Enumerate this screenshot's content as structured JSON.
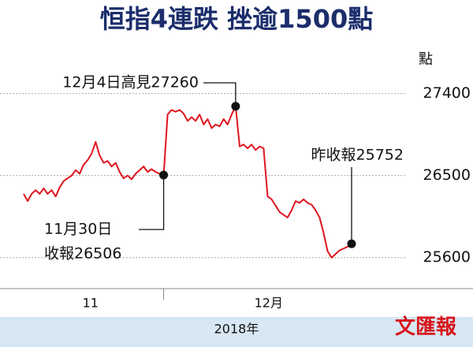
{
  "chart_data": {
    "type": "line",
    "title": "恒指4連跌 挫逾1500點",
    "y_unit": "點",
    "color": "#e0141e",
    "values": [
      26300,
      26220,
      26300,
      26340,
      26300,
      26360,
      26300,
      26340,
      26270,
      26370,
      26440,
      26470,
      26500,
      26560,
      26520,
      26620,
      26670,
      26740,
      26870,
      26720,
      26640,
      26660,
      26600,
      26640,
      26540,
      26470,
      26500,
      26460,
      26520,
      26560,
      26600,
      26540,
      26570,
      26540,
      26520,
      26506,
      27170,
      27220,
      27200,
      27220,
      27180,
      27100,
      27140,
      27100,
      27170,
      27060,
      27120,
      27020,
      27060,
      27040,
      27120,
      27060,
      27170,
      27260,
      26820,
      26840,
      26800,
      26840,
      26780,
      26820,
      26800,
      26270,
      26240,
      26170,
      26100,
      26070,
      26040,
      26120,
      26220,
      26200,
      26240,
      26200,
      26180,
      26120,
      26040,
      25870,
      25670,
      25600,
      25640,
      25680,
      25700,
      25720,
      25752
    ],
    "ylim": [
      25260,
      27950
    ],
    "yticks": [
      25600,
      26500,
      27400
    ],
    "grid": true,
    "x_labels": [
      "11",
      "12月"
    ],
    "x_footer": "2018年",
    "annotations": {
      "high": "12月4日高見27260",
      "nov30": [
        "11月30日",
        "收報26506"
      ],
      "last": "昨收報25752"
    },
    "logo": "文匯報"
  }
}
